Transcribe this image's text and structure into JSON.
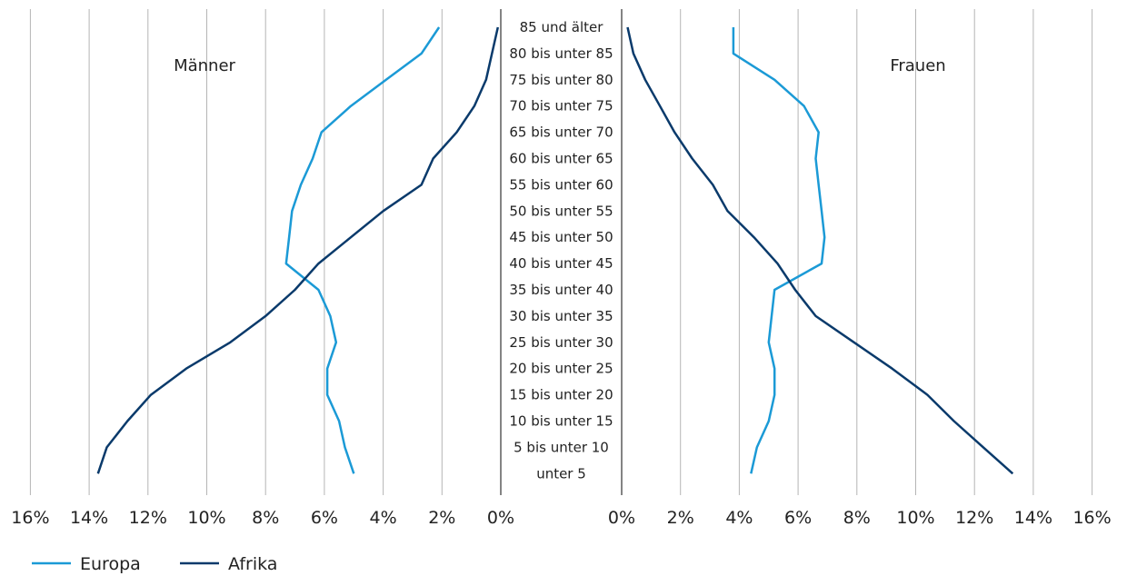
{
  "chart_data": {
    "type": "line",
    "orientation": "population-pyramid",
    "age_groups": [
      "85 und älter",
      "80 bis unter 85",
      "75 bis unter 80",
      "70 bis unter 75",
      "65 bis unter 70",
      "60 bis unter 65",
      "55 bis unter 60",
      "50 bis unter 55",
      "45 bis unter 50",
      "40 bis unter 45",
      "35 bis unter 40",
      "30 bis unter 35",
      "25 bis unter 30",
      "20 bis unter 25",
      "15 bis unter 20",
      "10 bis unter 15",
      "5 bis unter 10",
      "unter 5"
    ],
    "left_panel": {
      "title": "Männer",
      "tick_labels": [
        "16%",
        "14%",
        "12%",
        "10%",
        "8%",
        "6%",
        "4%",
        "2%",
        "0%"
      ],
      "xlim": [
        0,
        16
      ]
    },
    "right_panel": {
      "title": "Frauen",
      "tick_labels": [
        "0%",
        "2%",
        "4%",
        "6%",
        "8%",
        "10%",
        "12%",
        "14%",
        "16%"
      ],
      "xlim": [
        0,
        16
      ]
    },
    "series": [
      {
        "name": "Europa",
        "color": "#1b9ad6",
        "men": [
          2.1,
          2.7,
          3.9,
          5.1,
          6.1,
          6.4,
          6.8,
          7.1,
          7.2,
          7.3,
          6.2,
          5.8,
          5.6,
          5.9,
          5.9,
          5.5,
          5.3,
          5.0
        ],
        "women": [
          3.8,
          3.8,
          5.2,
          6.2,
          6.7,
          6.6,
          6.7,
          6.8,
          6.9,
          6.8,
          5.2,
          5.1,
          5.0,
          5.2,
          5.2,
          5.0,
          4.6,
          4.4
        ]
      },
      {
        "name": "Afrika",
        "color": "#0a3a6b",
        "men": [
          0.1,
          0.3,
          0.5,
          0.9,
          1.5,
          2.3,
          2.7,
          4.0,
          5.1,
          6.2,
          7.0,
          8.0,
          9.2,
          10.7,
          11.9,
          12.7,
          13.4,
          13.7
        ],
        "women": [
          0.2,
          0.4,
          0.8,
          1.3,
          1.8,
          2.4,
          3.1,
          3.6,
          4.5,
          5.3,
          5.9,
          6.6,
          7.9,
          9.2,
          10.4,
          11.3,
          12.3,
          13.3
        ]
      }
    ],
    "legend": {
      "position": "bottom-left",
      "entries": [
        "Europa",
        "Afrika"
      ]
    },
    "grid": {
      "vertical": true,
      "horizontal": false
    }
  }
}
